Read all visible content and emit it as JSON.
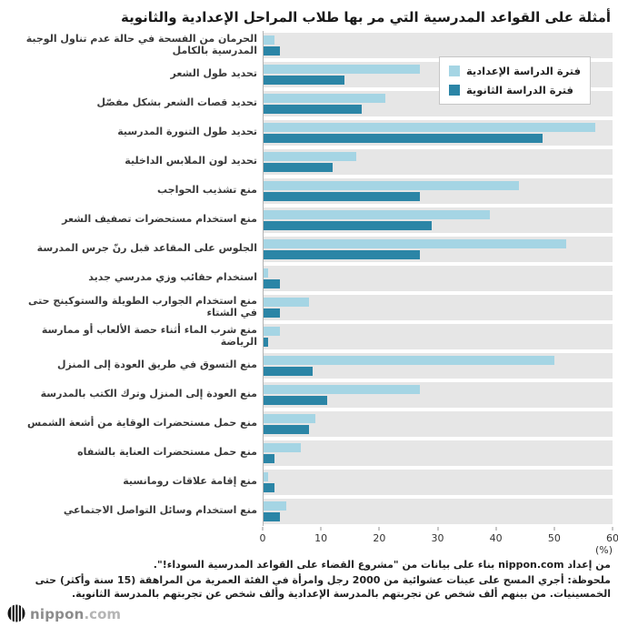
{
  "title": "أمثلة على القواعد المدرسية التي مر بها طلاب المراحل الإعدادية والثانوية",
  "legend": [
    {
      "label": "فترة الدراسة الإعدادية",
      "color": "#a5d5e4"
    },
    {
      "label": "فترة الدراسة الثانوية",
      "color": "#2b85a6"
    }
  ],
  "chart_data": {
    "type": "bar",
    "orientation": "horizontal",
    "xlim": [
      0,
      60
    ],
    "xticks": [
      0,
      10,
      20,
      30,
      40,
      50,
      60
    ],
    "xlabel": "(%)",
    "grid": false,
    "legend_position": "top-right",
    "row_band_color": "#e6e6e6",
    "categories": [
      "الحرمان من الفسحة في حالة عدم تناول الوجبة المدرسية بالكامل",
      "تحديد طول الشعر",
      "تحديد قصات الشعر بشكل مفصّل",
      "تحديد طول التنورة المدرسية",
      "تحديد لون الملابس الداخلية",
      "منع تشذيب الحواجب",
      "منع استخدام مستحضرات تصفيف الشعر",
      "الجلوس على المقاعد قبل رنّ جرس المدرسة",
      "استخدام حقائب وزي مدرسي جديد",
      "منع استخدام الجوارب الطويلة والستوكينج حتى في الشتاء",
      "منع شرب الماء أثناء حصة الألعاب أو ممارسة الرياضة",
      "منع التسوق في طريق العودة إلى المنزل",
      "منع العودة إلى المنزل وترك الكتب بالمدرسة",
      "منع حمل مستحضرات الوقاية من أشعة الشمس",
      "منع حمل مستحضرات العناية بالشفاه",
      "منع إقامة علاقات رومانسية",
      "منع استخدام وسائل التواصل الاجتماعي"
    ],
    "series": [
      {
        "name": "فترة الدراسة الإعدادية",
        "color": "#a5d5e4",
        "values": [
          2,
          27,
          21,
          57,
          16,
          44,
          39,
          52,
          1,
          8,
          3,
          50,
          27,
          9,
          6.5,
          1,
          4
        ]
      },
      {
        "name": "فترة الدراسة الثانوية",
        "color": "#2b85a6",
        "values": [
          3,
          14,
          17,
          48,
          12,
          27,
          29,
          27,
          3,
          3,
          1,
          8.5,
          11,
          8,
          2,
          2,
          3
        ]
      }
    ]
  },
  "footer": {
    "source": "من إعداد nippon.com بناء على بيانات من \"مشروع القضاء على القواعد المدرسية السوداء!\".",
    "note": "ملحوظة: أجري المسح على عينات عشوائية من 2000 رجل وامرأة في الفئة العمرية من المراهقة (15 سنة وأكثر) حتى الخمسينيات. من بينهم ألف شخص عن تجربتهم بالمدرسة الإعدادية وألف شخص عن تجربتهم بالمدرسة الثانوية."
  },
  "logo": {
    "name": "nippon",
    "tld": ".com"
  }
}
